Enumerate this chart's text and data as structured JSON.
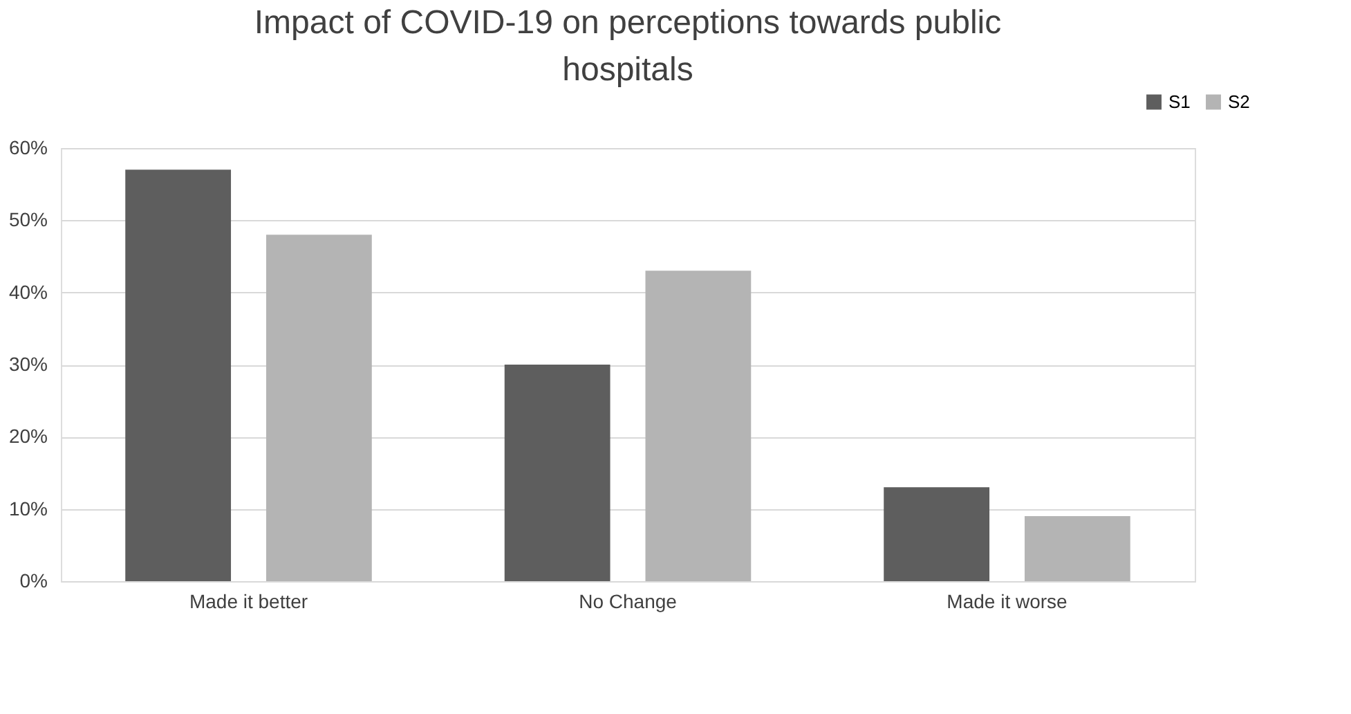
{
  "chart_data": {
    "type": "bar",
    "title": "Impact of COVID-19 on perceptions towards public hospitals",
    "categories": [
      "Made it better",
      "No Change",
      "Made it worse"
    ],
    "series": [
      {
        "name": "S1",
        "color": "#5e5e5e",
        "values": [
          57,
          30,
          13
        ]
      },
      {
        "name": "S2",
        "color": "#b4b4b4",
        "values": [
          48,
          43,
          9
        ]
      }
    ],
    "ylim": [
      0,
      60
    ],
    "yticks": [
      {
        "value": 0,
        "label": "0%"
      },
      {
        "value": 10,
        "label": "10%"
      },
      {
        "value": 20,
        "label": "20%"
      },
      {
        "value": 30,
        "label": "30%"
      },
      {
        "value": 40,
        "label": "40%"
      },
      {
        "value": 50,
        "label": "50%"
      },
      {
        "value": 60,
        "label": "60%"
      }
    ],
    "grid": "y",
    "legend": "top right"
  }
}
